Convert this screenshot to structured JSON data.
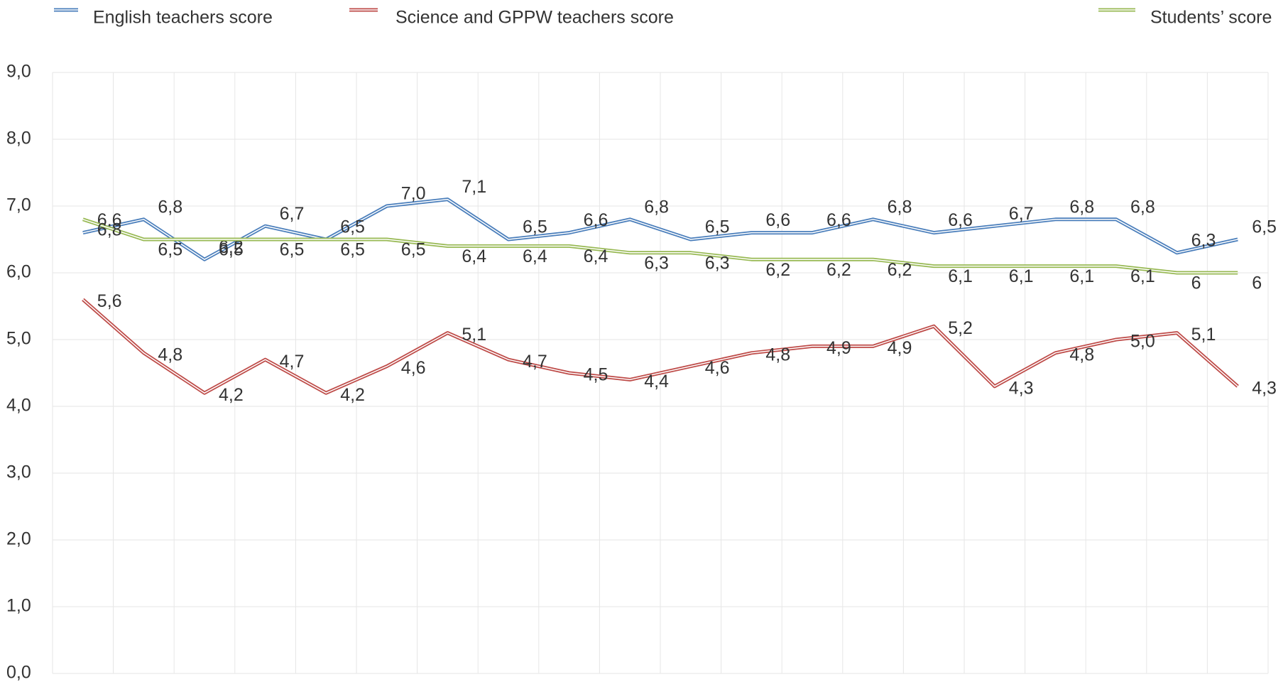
{
  "chart_data": {
    "type": "line",
    "categories": [
      null,
      null,
      null,
      null,
      null,
      null,
      null,
      null,
      null,
      null,
      null,
      null,
      null,
      null,
      null,
      null,
      null,
      null,
      null,
      null
    ],
    "series": [
      {
        "name": "English teachers score",
        "color": "#4a7ebb",
        "values": [
          6.6,
          6.8,
          6.2,
          6.7,
          6.5,
          7.0,
          7.1,
          6.5,
          6.6,
          6.8,
          6.5,
          6.6,
          6.6,
          6.8,
          6.6,
          6.7,
          6.8,
          6.8,
          6.3,
          6.5
        ],
        "value_labels": [
          "6,6",
          "6,8",
          "6,2",
          "6,7",
          "6,5",
          "7,0",
          "7,1",
          "6,5",
          "6,6",
          "6,8",
          "6,5",
          "6,6",
          "6,6",
          "6,8",
          "6,6",
          "6,7",
          "6,8",
          "6,8",
          "6,3",
          "6,5"
        ]
      },
      {
        "name": "Science and GPPW teachers score",
        "color": "#be4b48",
        "values": [
          5.6,
          4.8,
          4.2,
          4.7,
          4.2,
          4.6,
          5.1,
          4.7,
          4.5,
          4.4,
          4.6,
          4.8,
          4.9,
          4.9,
          5.2,
          4.3,
          4.8,
          5.0,
          5.1,
          4.3
        ],
        "value_labels": [
          "5,6",
          "4,8",
          "4,2",
          "4,7",
          "4,2",
          "4,6",
          "5,1",
          "4,7",
          "4,5",
          "4,4",
          "4,6",
          "4,8",
          "4,9",
          "4,9",
          "5,2",
          "4,3",
          "4,8",
          "5,0",
          "5,1",
          "4,3"
        ]
      },
      {
        "name": "Students’ score",
        "color": "#98b954",
        "values": [
          6.8,
          6.5,
          6.5,
          6.5,
          6.5,
          6.5,
          6.4,
          6.4,
          6.4,
          6.3,
          6.3,
          6.2,
          6.2,
          6.2,
          6.1,
          6.1,
          6.1,
          6.1,
          6,
          6
        ],
        "value_labels": [
          "6,8",
          "6,5",
          "6,5",
          "6,5",
          "6,5",
          "6,5",
          "6,4",
          "6,4",
          "6,4",
          "6,3",
          "6,3",
          "6,2",
          "6,2",
          "6,2",
          "6,1",
          "6,1",
          "6,1",
          "6,1",
          "6",
          "6"
        ]
      }
    ],
    "ylim": [
      0,
      9
    ],
    "yticks": [
      {
        "value": 0,
        "label": "0,0"
      },
      {
        "value": 1,
        "label": "1,0"
      },
      {
        "value": 2,
        "label": "2,0"
      },
      {
        "value": 3,
        "label": "3,0"
      },
      {
        "value": 4,
        "label": "4,0"
      },
      {
        "value": 5,
        "label": "5,0"
      },
      {
        "value": 6,
        "label": "6,0"
      },
      {
        "value": 7,
        "label": "7,0"
      },
      {
        "value": 8,
        "label": "8,0"
      },
      {
        "value": 9,
        "label": "9,0"
      }
    ],
    "grid": true,
    "legend": "top"
  }
}
